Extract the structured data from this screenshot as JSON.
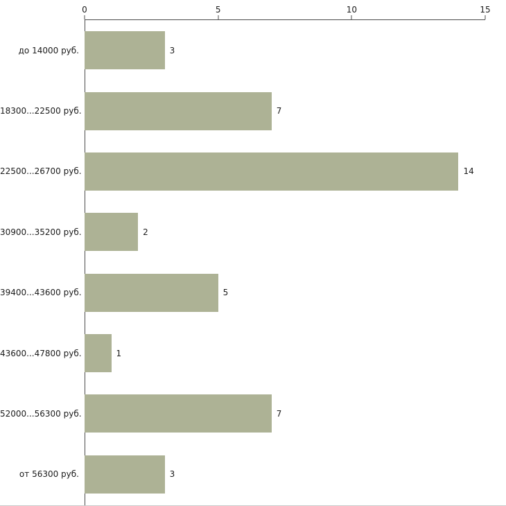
{
  "chart_data": {
    "type": "bar",
    "orientation": "horizontal",
    "title": "",
    "xlabel": "",
    "ylabel": "",
    "categories": [
      "до 14000 руб.",
      "18300...22500 руб.",
      "22500...26700 руб.",
      "30900...35200 руб.",
      "39400...43600 руб.",
      "43600...47800 руб.",
      "52000...56300 руб.",
      "от 56300 руб."
    ],
    "values": [
      3,
      7,
      14,
      2,
      5,
      1,
      7,
      3
    ],
    "value_labels": [
      "3",
      "7",
      "14",
      "2",
      "5",
      "1",
      "7",
      "3"
    ],
    "x_ticks": [
      0,
      5,
      10,
      15
    ],
    "xlim": [
      0,
      15
    ],
    "grid": "off",
    "legend": "none",
    "axis_position": "top-left",
    "bar_color": "#adb295",
    "axis_color": "#4a4a4a",
    "text_color": "#1a1a1a",
    "background_color": "#ffffff"
  }
}
